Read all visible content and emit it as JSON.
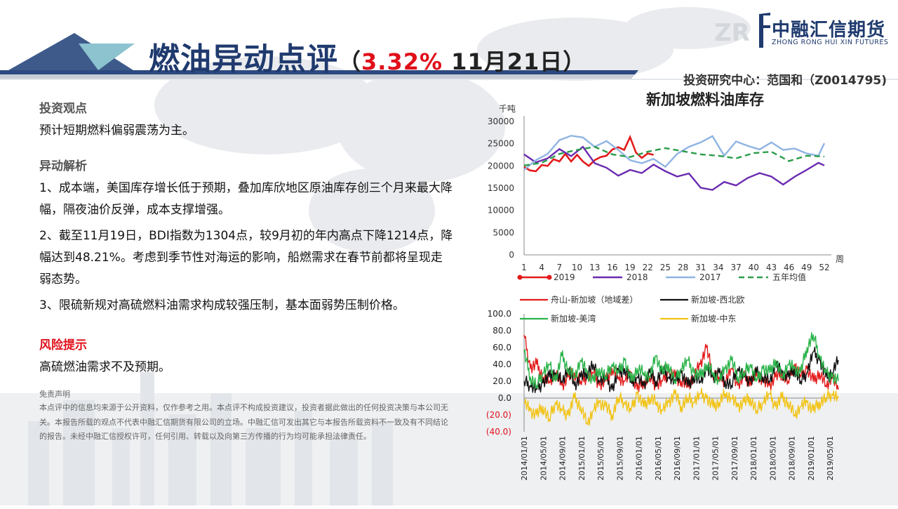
{
  "header": {
    "title_part1": "燃油",
    "title_part2": "异动点评",
    "paren_open": "（",
    "change_pct": "3.32%",
    "date": "11月21日",
    "paren_close": "）",
    "researcher": "投资研究中心：范国和（Z0014795)"
  },
  "logo": {
    "cn": "中融汇信期货",
    "en": "ZHONG RONG HUI XIN FUTURES"
  },
  "view": {
    "heading": "投资观点",
    "text": "预计短期燃料偏弱震荡为主。"
  },
  "analysis": {
    "heading": "异动解析",
    "p1": "1、成本端，美国库存增长低于预期，叠加库欣地区原油库存创三个月来最大降幅，隔夜油价反弹，成本支撑增强。",
    "p2": "2、截至11月19日，BDI指数为1304点，较9月初的年内高点下降1214点，降幅达到48.21%。考虑到季节性对海运的影响，船燃需求在春节前都将呈现走弱态势。",
    "p3": "3、限硫新规对高硫燃料油需求构成较强压制，基本面弱势压制价格。"
  },
  "risk": {
    "heading": "风险提示",
    "text": "高硫燃油需求不及预期。"
  },
  "disclaimer": {
    "heading": "免责声明",
    "text": "本点评中的信息均来源于公开资料，仅作参考之用。本点评不构成投资建议，投资者据此做出的任何投资决策与本公司无关。本报告所载的观点不代表中融汇信期货有限公司的立场。中融汇信可发出其它与本报告所载资料不一致及有不同结论的报告。未经中融汇信授权许可，任何引用、转载以及向第三方传播的行为均可能承担法律责任。"
  },
  "chart_data": [
    {
      "type": "line",
      "title": "新加坡燃料油库存",
      "ylabel": "千吨",
      "xlabel": "周",
      "ylim": [
        0,
        30000
      ],
      "yticks": [
        "0",
        "5000",
        "10000",
        "15000",
        "20000",
        "25000",
        "30000"
      ],
      "xticks": [
        "1",
        "4",
        "7",
        "10",
        "13",
        "16",
        "19",
        "22",
        "25",
        "28",
        "31",
        "34",
        "37",
        "40",
        "43",
        "46",
        "49",
        "52"
      ],
      "grid": false,
      "legend": "bottom",
      "series": [
        {
          "name": "2019",
          "color": "#e31b1b",
          "x": [
            1,
            2,
            3,
            4,
            5,
            6,
            7,
            8,
            9,
            10,
            11,
            12,
            13,
            14,
            15,
            16,
            17,
            18,
            19,
            20,
            21,
            22,
            23
          ],
          "values": [
            19800,
            19000,
            18800,
            20200,
            20000,
            21500,
            21000,
            22700,
            21000,
            22500,
            21000,
            20000,
            21300,
            22000,
            22300,
            23700,
            24200,
            23600,
            26500,
            23000,
            21800,
            22800,
            22500
          ]
        },
        {
          "name": "2018",
          "color": "#6a2bb0",
          "x": [
            1,
            3,
            5,
            7,
            9,
            11,
            13,
            15,
            17,
            19,
            21,
            23,
            25,
            27,
            29,
            31,
            33,
            35,
            37,
            39,
            41,
            43,
            45,
            47,
            49,
            51,
            52
          ],
          "values": [
            22600,
            20800,
            21700,
            23800,
            22200,
            24300,
            20600,
            19600,
            17800,
            19100,
            18400,
            20300,
            18800,
            17600,
            18300,
            15100,
            14600,
            16400,
            15600,
            17300,
            18400,
            17600,
            15800,
            17600,
            19100,
            20700,
            20100
          ]
        },
        {
          "name": "2017",
          "color": "#8fb4e3",
          "x": [
            1,
            3,
            5,
            7,
            9,
            11,
            13,
            15,
            17,
            19,
            21,
            23,
            25,
            27,
            29,
            31,
            33,
            35,
            37,
            39,
            41,
            43,
            45,
            47,
            49,
            51,
            52
          ],
          "values": [
            19100,
            21300,
            22700,
            25800,
            26800,
            26400,
            24300,
            25600,
            23600,
            21300,
            20600,
            21600,
            19800,
            22700,
            24300,
            25300,
            26700,
            22300,
            25500,
            24500,
            23700,
            25300,
            23600,
            23900,
            22800,
            22300,
            25100
          ]
        },
        {
          "name": "五年均值",
          "color": "#2a9d4a",
          "x": [
            1,
            4,
            7,
            10,
            13,
            16,
            19,
            22,
            25,
            28,
            31,
            34,
            37,
            40,
            43,
            46,
            49,
            52
          ],
          "values": [
            20100,
            20700,
            22700,
            23600,
            24300,
            22600,
            22000,
            23200,
            24000,
            23300,
            22600,
            22300,
            21700,
            22900,
            23200,
            21100,
            22300,
            22100
          ]
        }
      ]
    },
    {
      "type": "line",
      "ylim": [
        -40,
        100
      ],
      "yticks": [
        "(40.0)",
        "(20.0)",
        "0.0",
        "20.0",
        "40.0",
        "60.0",
        "80.0",
        "100.0"
      ],
      "xticks": [
        "2014/01/01",
        "2014/05/01",
        "2014/09/01",
        "2015/01/01",
        "2015/05/01",
        "2015/09/01",
        "2016/01/01",
        "2016/05/01",
        "2016/09/01",
        "2017/01/01",
        "2017/05/01",
        "2017/09/01",
        "2018/01/01",
        "2018/05/01",
        "2018/09/01",
        "2019/01/01",
        "2019/05/01"
      ],
      "legend": "top",
      "series": [
        {
          "name": "舟山-新加坡（地域差）",
          "color": "#e31b1b",
          "x": [
            0,
            1,
            2,
            3,
            4,
            5,
            6,
            7,
            8,
            9,
            10,
            11,
            12,
            13,
            14,
            15,
            16,
            17,
            18,
            19,
            20,
            21,
            22,
            23,
            24,
            25,
            26,
            27,
            28,
            29,
            30,
            31,
            32,
            33,
            34,
            35,
            36,
            37,
            38,
            39,
            40,
            41,
            42,
            43,
            44,
            45,
            46,
            47,
            48,
            49,
            50
          ],
          "values": [
            75,
            35,
            40,
            25,
            20,
            30,
            15,
            25,
            30,
            20,
            25,
            30,
            15,
            20,
            35,
            25,
            20,
            30,
            10,
            20,
            25,
            15,
            20,
            30,
            25,
            20,
            15,
            25,
            40,
            60,
            30,
            25,
            20,
            35,
            15,
            25,
            20,
            30,
            20,
            15,
            25,
            30,
            20,
            40,
            25,
            35,
            20,
            30,
            15,
            25,
            10
          ]
        },
        {
          "name": "新加坡-西北欧",
          "color": "#111111",
          "x": [
            0,
            1,
            2,
            3,
            4,
            5,
            6,
            7,
            8,
            9,
            10,
            11,
            12,
            13,
            14,
            15,
            16,
            17,
            18,
            19,
            20,
            21,
            22,
            23,
            24,
            25,
            26,
            27,
            28,
            29,
            30,
            31,
            32,
            33,
            34,
            35,
            36,
            37,
            38,
            39,
            40,
            41,
            42,
            43,
            44,
            45,
            46,
            47,
            48,
            49,
            50
          ],
          "values": [
            20,
            15,
            10,
            18,
            25,
            30,
            20,
            35,
            15,
            25,
            30,
            40,
            20,
            25,
            10,
            30,
            35,
            20,
            25,
            15,
            30,
            20,
            35,
            25,
            20,
            30,
            15,
            25,
            20,
            35,
            25,
            30,
            20,
            15,
            35,
            25,
            20,
            30,
            25,
            20,
            40,
            30,
            25,
            35,
            20,
            30,
            55,
            45,
            25,
            30,
            45
          ]
        },
        {
          "name": "新加坡-美湾",
          "color": "#2bb34a",
          "x": [
            0,
            1,
            2,
            3,
            4,
            5,
            6,
            7,
            8,
            9,
            10,
            11,
            12,
            13,
            14,
            15,
            16,
            17,
            18,
            19,
            20,
            21,
            22,
            23,
            24,
            25,
            26,
            27,
            28,
            29,
            30,
            31,
            32,
            33,
            34,
            35,
            36,
            37,
            38,
            39,
            40,
            41,
            42,
            43,
            44,
            45,
            46,
            47,
            48,
            49,
            50
          ],
          "values": [
            55,
            25,
            15,
            30,
            40,
            20,
            50,
            35,
            25,
            45,
            30,
            20,
            35,
            25,
            40,
            30,
            45,
            20,
            35,
            30,
            25,
            50,
            30,
            40,
            20,
            35,
            45,
            30,
            25,
            40,
            30,
            20,
            35,
            45,
            25,
            30,
            40,
            20,
            35,
            30,
            45,
            25,
            40,
            35,
            30,
            60,
            75,
            50,
            30,
            25,
            20
          ]
        },
        {
          "name": "新加坡-中东",
          "color": "#f2c418",
          "x": [
            0,
            1,
            2,
            3,
            4,
            5,
            6,
            7,
            8,
            9,
            10,
            11,
            12,
            13,
            14,
            15,
            16,
            17,
            18,
            19,
            20,
            21,
            22,
            23,
            24,
            25,
            26,
            27,
            28,
            29,
            30,
            31,
            32,
            33,
            34,
            35,
            36,
            37,
            38,
            39,
            40,
            41,
            42,
            43,
            44,
            45,
            46,
            47,
            48,
            49,
            50
          ],
          "values": [
            -5,
            -15,
            -20,
            -10,
            -25,
            -5,
            -15,
            -20,
            0,
            -10,
            -30,
            -15,
            -5,
            -10,
            -20,
            0,
            -5,
            -15,
            5,
            -10,
            0,
            -5,
            -15,
            -5,
            5,
            -10,
            0,
            -5,
            5,
            0,
            -10,
            -5,
            5,
            0,
            -10,
            -5,
            0,
            -15,
            -5,
            5,
            -10,
            0,
            -5,
            -20,
            -10,
            -5,
            -15,
            -5,
            0,
            5,
            0
          ]
        }
      ]
    }
  ]
}
